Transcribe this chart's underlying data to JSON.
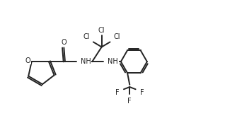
{
  "background_color": "#ffffff",
  "line_color": "#222222",
  "line_width": 1.4,
  "font_size": 7.0,
  "figsize": [
    3.18,
    1.98
  ],
  "dpi": 100,
  "xlim": [
    0,
    9.5
  ],
  "ylim": [
    0,
    6.2
  ]
}
